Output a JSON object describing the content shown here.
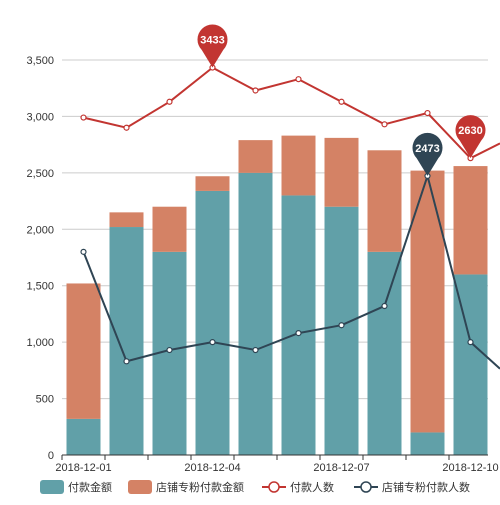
{
  "chart_data": {
    "type": "bar",
    "stacked": true,
    "categories": [
      "2018-12-01",
      "2018-12-02",
      "2018-12-03",
      "2018-12-04",
      "2018-12-05",
      "2018-12-06",
      "2018-12-07",
      "2018-12-08",
      "2018-12-09",
      "2018-12-10"
    ],
    "x_tick_labels": [
      "2018-12-01",
      "2018-12-04",
      "2018-12-07",
      "2018-12-10"
    ],
    "ylim": [
      0,
      3500
    ],
    "y_ticks": [
      0,
      500,
      1000,
      1500,
      2000,
      2500,
      3000,
      3500
    ],
    "y_tick_labels": [
      "0",
      "500",
      "1,000",
      "1,500",
      "2,000",
      "2,500",
      "3,000",
      "3,500"
    ],
    "grid": true,
    "legend_position": "bottom",
    "series": [
      {
        "name": "付款金额",
        "type": "bar",
        "color": "#61a0a8",
        "values": [
          320,
          2020,
          1800,
          2340,
          2500,
          2300,
          2200,
          1800,
          200,
          1600
        ]
      },
      {
        "name": "店铺专粉付款金额",
        "type": "bar",
        "color": "#d48265",
        "values": [
          1200,
          130,
          400,
          130,
          290,
          530,
          610,
          900,
          2320,
          960
        ]
      },
      {
        "name": "付款人数",
        "type": "line",
        "color": "#c23531",
        "values": [
          2990,
          2900,
          3130,
          3433,
          3230,
          3330,
          3130,
          2930,
          3030,
          2630
        ]
      },
      {
        "name": "店铺专粉付款人数",
        "type": "line",
        "color": "#2f4554",
        "values": [
          1800,
          830,
          930,
          1000,
          930,
          1080,
          1150,
          1320,
          2473,
          1000
        ]
      }
    ],
    "annotations": [
      {
        "series": "付款人数",
        "category": "2018-12-04",
        "label": "3433"
      },
      {
        "series": "付款人数",
        "category": "2018-12-10",
        "label": "2630"
      },
      {
        "series": "店铺专粉付款人数",
        "category": "2018-12-09",
        "label": "2473"
      }
    ]
  }
}
